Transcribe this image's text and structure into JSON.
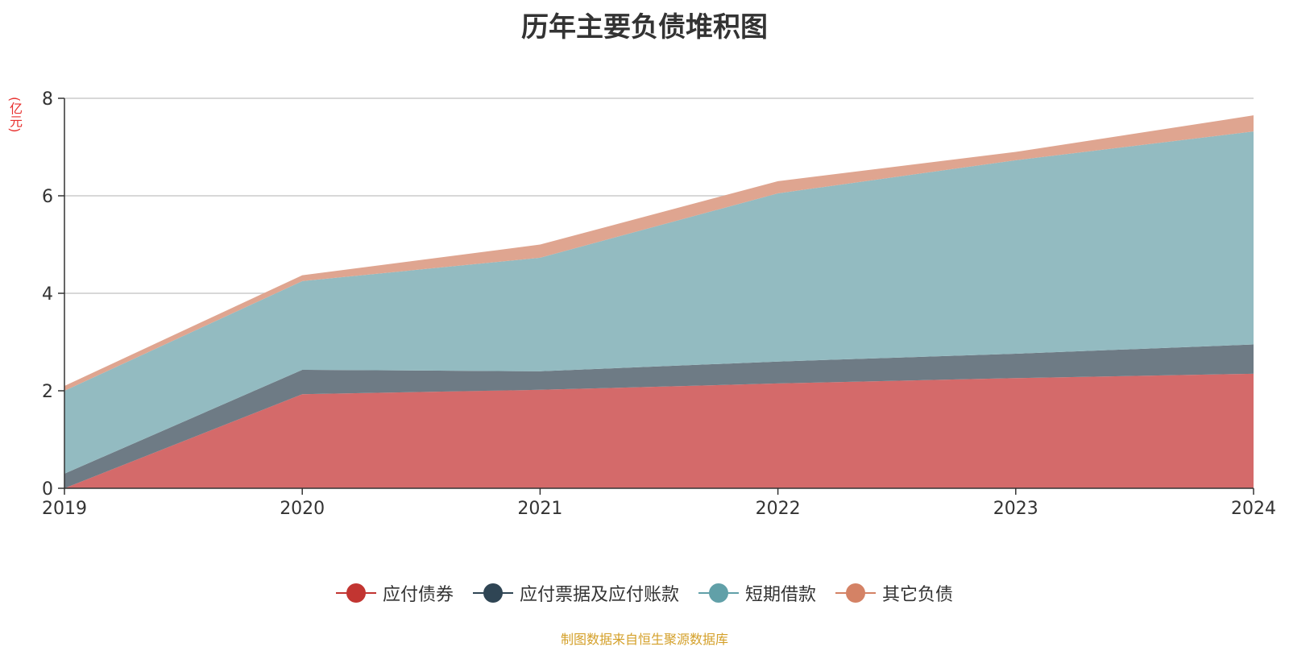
{
  "chart_data": {
    "type": "area",
    "stacked": true,
    "title": "历年主要负债堆积图",
    "y_unit": "(亿元)",
    "x": [
      "2019",
      "2020",
      "2021",
      "2022",
      "2023",
      "2024"
    ],
    "ylim": [
      0,
      8
    ],
    "y_ticks": [
      "0",
      "2",
      "4",
      "6",
      "8"
    ],
    "grid": true,
    "legend_position": "bottom",
    "series": [
      {
        "name": "应付债券",
        "color": "#c23531",
        "fill": "#d46a6a",
        "values": [
          0.0,
          1.93,
          2.02,
          2.15,
          2.26,
          2.35
        ]
      },
      {
        "name": "应付票据及应付账款",
        "color": "#2f4554",
        "fill": "#6e7b85",
        "values": [
          0.3,
          0.5,
          0.38,
          0.45,
          0.5,
          0.6
        ]
      },
      {
        "name": "短期借款",
        "color": "#61a0a8",
        "fill": "#93bbc1",
        "values": [
          1.7,
          1.82,
          2.33,
          3.45,
          3.97,
          4.37
        ]
      },
      {
        "name": "其它负债",
        "color": "#d48265",
        "fill": "#dfa590",
        "values": [
          0.1,
          0.12,
          0.27,
          0.25,
          0.17,
          0.33
        ]
      }
    ],
    "source_note": "制图数据来自恒生聚源数据库"
  }
}
